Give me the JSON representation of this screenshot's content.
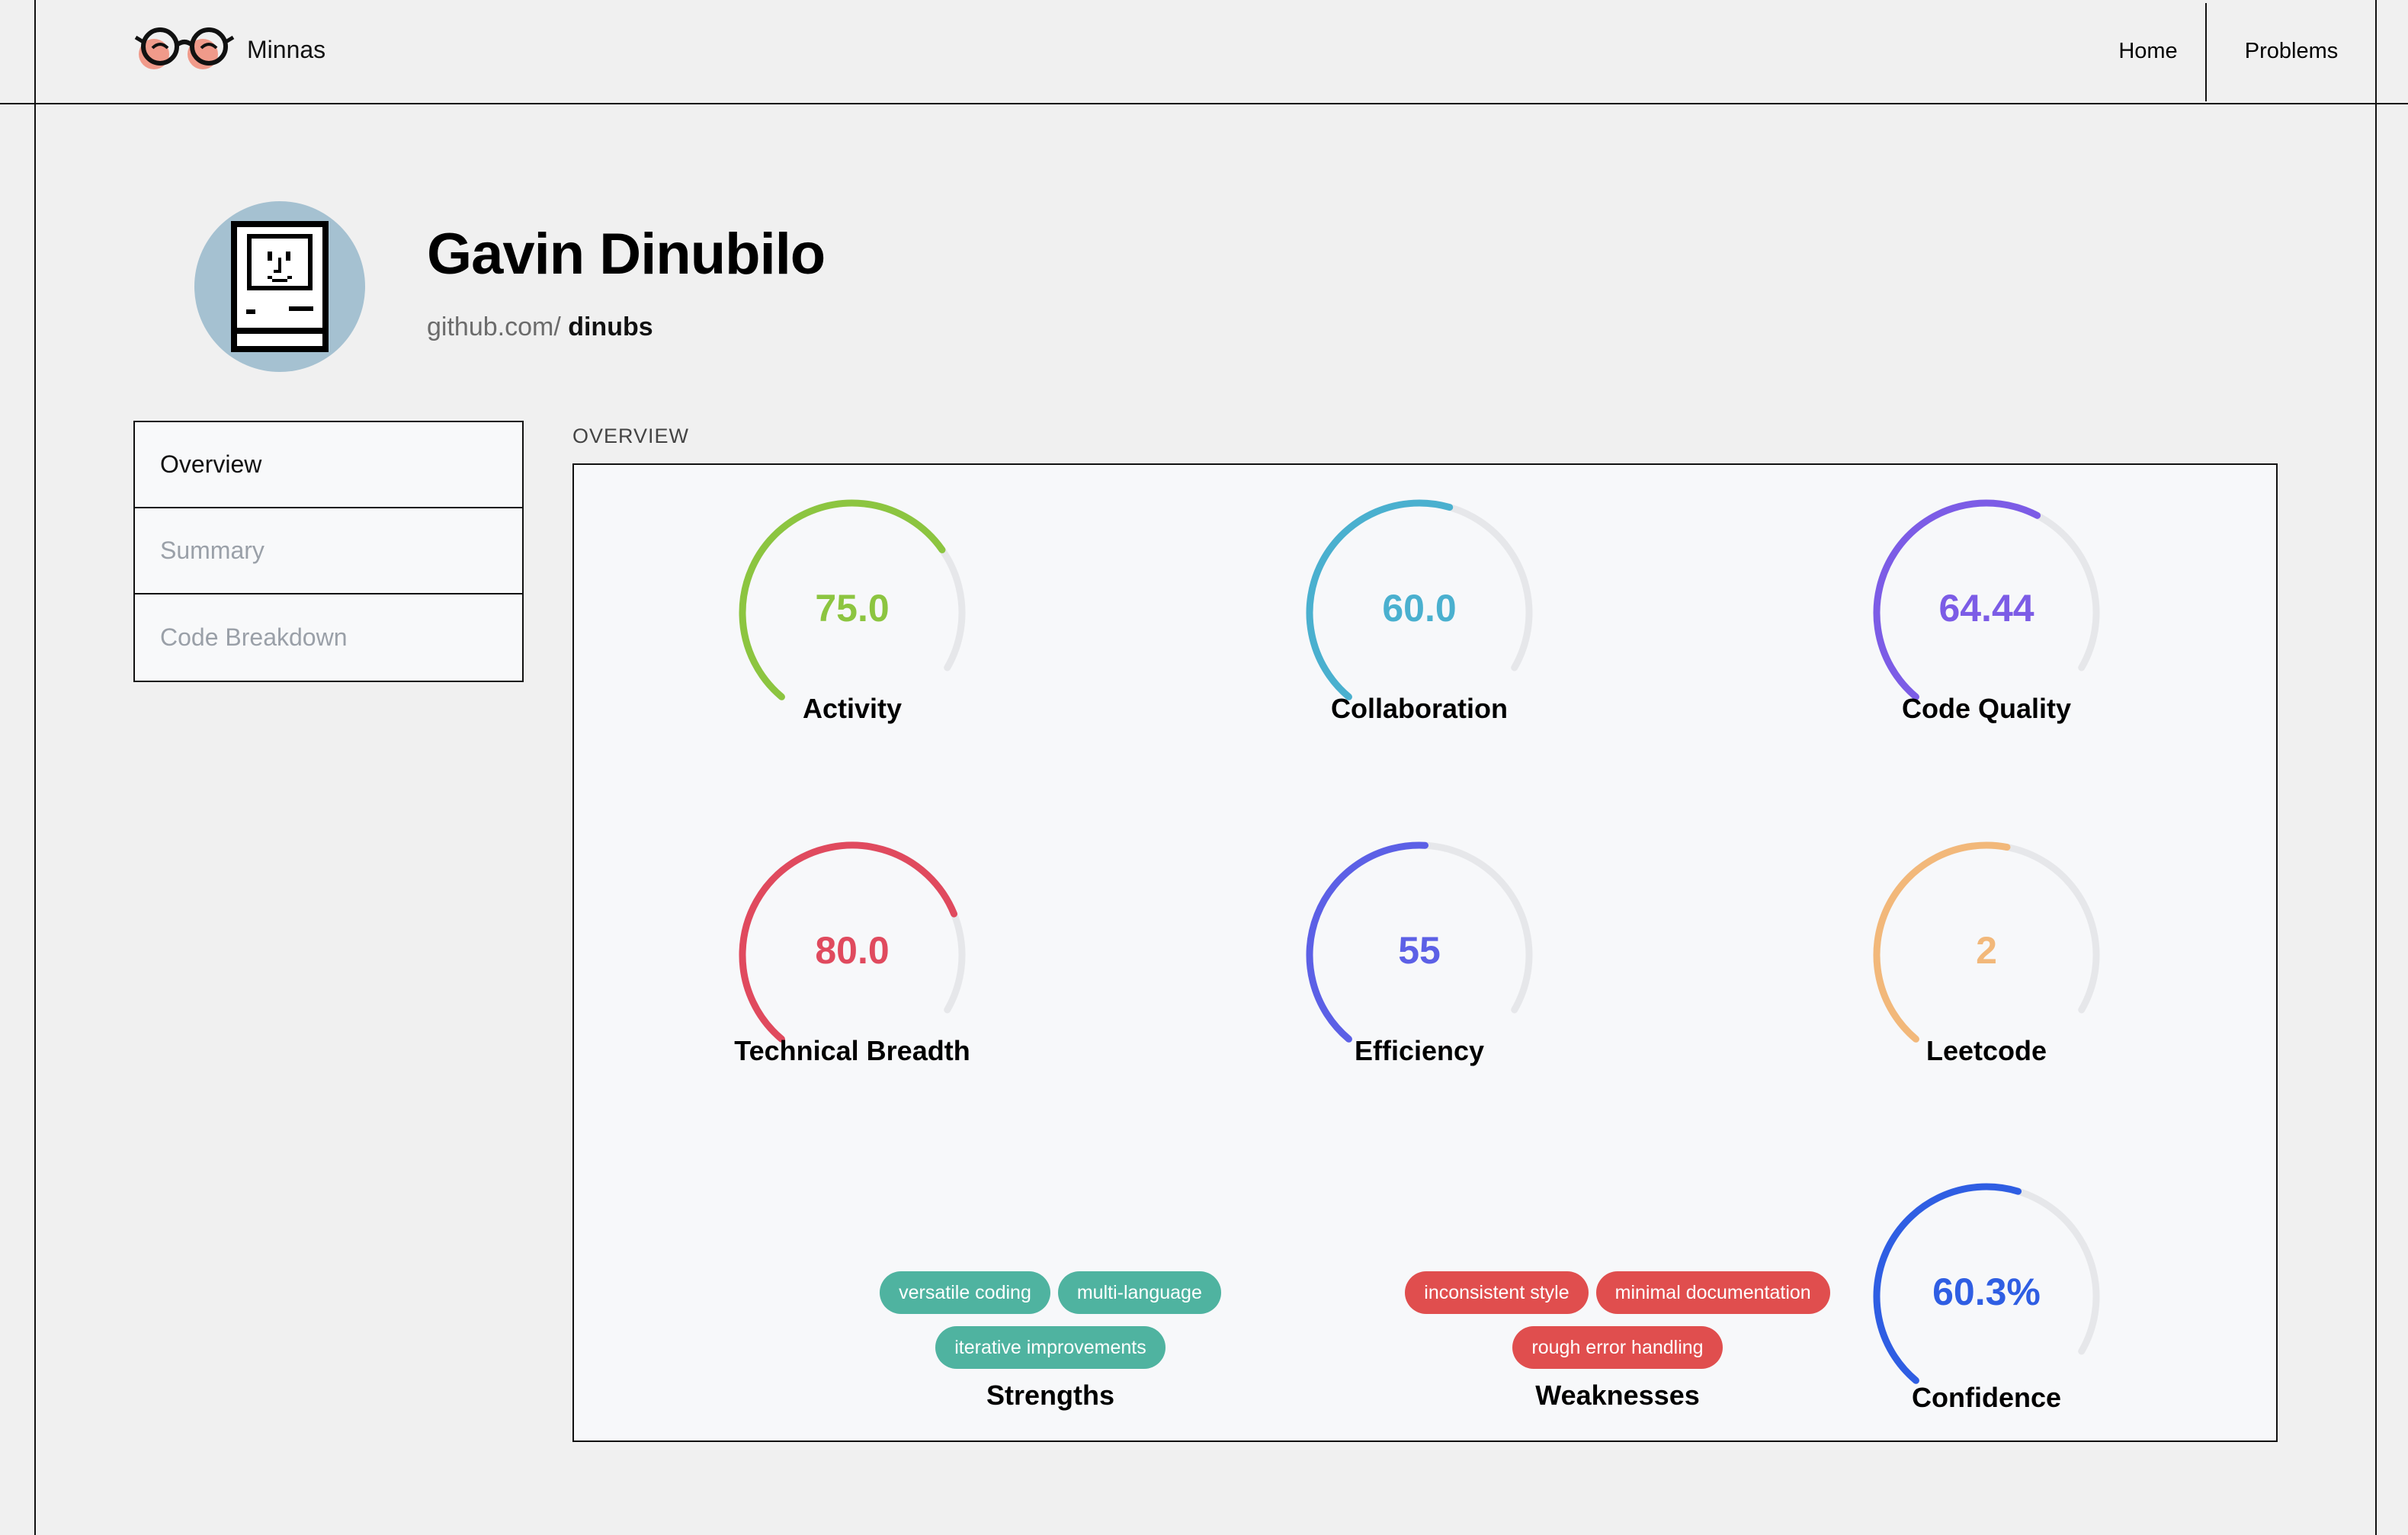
{
  "header": {
    "brand": "Minnas",
    "brand_logo_icon": "glasses-logo-icon",
    "nav": {
      "home": "Home",
      "problems": "Problems"
    }
  },
  "profile": {
    "avatar_icon": "classic-computer-avatar-icon",
    "name": "Gavin Dinubilo",
    "github_prefix": "github.com/",
    "github_user": "dinubs"
  },
  "sidebar": {
    "items": [
      {
        "label": "Overview",
        "active": true
      },
      {
        "label": "Summary",
        "active": false
      },
      {
        "label": "Code Breakdown",
        "active": false
      }
    ]
  },
  "overview": {
    "section_label": "OVERVIEW",
    "gauges": [
      {
        "label": "Activity",
        "value": "75.0",
        "fraction": 0.75,
        "color": "#8cc540"
      },
      {
        "label": "Collaboration",
        "value": "60.0",
        "fraction": 0.6,
        "color": "#4ab0cf"
      },
      {
        "label": "Code Quality",
        "value": "64.44",
        "fraction": 0.6444,
        "color": "#7c5ce6"
      },
      {
        "label": "Technical Breadth",
        "value": "80.0",
        "fraction": 0.8,
        "color": "#e04a5e"
      },
      {
        "label": "Efficiency",
        "value": "55",
        "fraction": 0.55,
        "color": "#5c60e6"
      },
      {
        "label": "Leetcode",
        "value": "2",
        "fraction": 0.58,
        "color": "#f2b87a"
      },
      {
        "label": "Confidence",
        "value": "60.3%",
        "fraction": 0.603,
        "color": "#2f5ee3"
      }
    ],
    "strengths": {
      "label": "Strengths",
      "tags": [
        "versatile coding",
        "multi-language",
        "iterative improvements"
      ],
      "color": "#4fb3a0"
    },
    "weaknesses": {
      "label": "Weaknesses",
      "tags": [
        "inconsistent style",
        "minimal documentation",
        "rough error handling"
      ],
      "color": "#e04e4e"
    },
    "track_color": "#e6e7ea"
  }
}
